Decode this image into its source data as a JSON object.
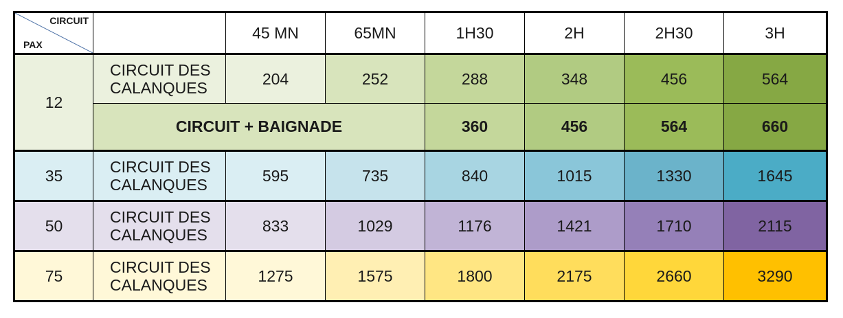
{
  "corner": {
    "top_label": "CIRCUIT",
    "bottom_label": "PAX"
  },
  "headers": [
    "45 MN",
    "65MN",
    "1H30",
    "2H",
    "2H30",
    "3H"
  ],
  "groups": [
    {
      "pax": "12",
      "rows": [
        {
          "label": "CIRCUIT DES\nCALANQUES",
          "values": [
            "204",
            "252",
            "288",
            "348",
            "456",
            "564"
          ]
        },
        {
          "label": "CIRCUIT + BAIGNADE",
          "values": [
            "360",
            "456",
            "564",
            "660"
          ]
        }
      ],
      "colors": [
        "#ebf1de",
        "#ebf1de",
        "#d8e4bc",
        "#c4d79b",
        "#b1cb82",
        "#9bbb59",
        "#86a844"
      ]
    },
    {
      "pax": "35",
      "rows": [
        {
          "label": "CIRCUIT DES\nCALANQUES",
          "values": [
            "595",
            "735",
            "840",
            "1015",
            "1330",
            "1645"
          ]
        }
      ],
      "colors": [
        "#daeef3",
        "#daeef3",
        "#c6e3ec",
        "#a8d5e2",
        "#8ac6d9",
        "#6bb3ca",
        "#4bacc6"
      ]
    },
    {
      "pax": "50",
      "rows": [
        {
          "label": "CIRCUIT DES\nCALANQUES",
          "values": [
            "833",
            "1029",
            "1176",
            "1421",
            "1710",
            "2115"
          ]
        }
      ],
      "colors": [
        "#e4dfec",
        "#e4dfec",
        "#d4cbe2",
        "#c1b4d6",
        "#ad9cc9",
        "#9580b8",
        "#8064a2"
      ]
    },
    {
      "pax": "75",
      "rows": [
        {
          "label": "CIRCUIT DES\nCALANQUES",
          "values": [
            "1275",
            "1575",
            "1800",
            "2175",
            "2660",
            "3290"
          ]
        }
      ],
      "colors": [
        "#fff8d8",
        "#fff8d8",
        "#ffefb3",
        "#ffe683",
        "#ffdd5c",
        "#ffd73a",
        "#ffc000"
      ]
    }
  ]
}
